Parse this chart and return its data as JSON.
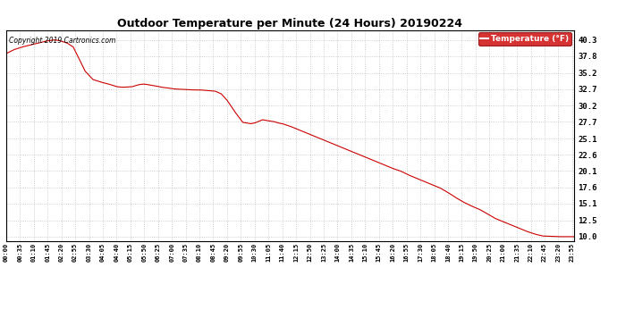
{
  "title": "Outdoor Temperature per Minute (24 Hours) 20190224",
  "copyright_text": "Copyright 2019 Cartronics.com",
  "legend_label": "Temperature (°F)",
  "line_color": "#cc0000",
  "background_color": "#ffffff",
  "grid_color": "#aaaaaa",
  "yticks": [
    10.0,
    12.5,
    15.1,
    17.6,
    20.1,
    22.6,
    25.1,
    27.7,
    30.2,
    32.7,
    35.2,
    37.8,
    40.3
  ],
  "ymin": 9.3,
  "ymax": 41.8,
  "xtick_interval_minutes": 35,
  "total_minutes": 1440,
  "key_times_minutes": [
    0,
    10,
    20,
    40,
    60,
    80,
    100,
    120,
    130,
    140,
    155,
    170,
    180,
    200,
    220,
    240,
    260,
    270,
    280,
    295,
    310,
    320,
    330,
    340,
    350,
    360,
    370,
    380,
    395,
    410,
    425,
    440,
    455,
    470,
    490,
    510,
    530,
    545,
    560,
    580,
    600,
    620,
    630,
    640,
    650,
    660,
    670,
    680,
    690,
    700,
    720,
    740,
    760,
    780,
    800,
    820,
    840,
    860,
    880,
    900,
    920,
    940,
    960,
    980,
    1000,
    1020,
    1040,
    1060,
    1080,
    1100,
    1120,
    1140,
    1160,
    1180,
    1200,
    1220,
    1240,
    1260,
    1280,
    1300,
    1320,
    1340,
    1360,
    1380,
    1400,
    1420,
    1439
  ],
  "key_temps": [
    38.2,
    38.5,
    38.8,
    39.2,
    39.5,
    39.8,
    40.1,
    40.3,
    40.25,
    40.1,
    39.8,
    39.2,
    38.0,
    35.5,
    34.2,
    33.8,
    33.5,
    33.3,
    33.1,
    33.0,
    33.05,
    33.1,
    33.3,
    33.45,
    33.5,
    33.4,
    33.3,
    33.2,
    33.0,
    32.9,
    32.75,
    32.7,
    32.65,
    32.6,
    32.6,
    32.5,
    32.4,
    32.0,
    31.0,
    29.2,
    27.6,
    27.4,
    27.5,
    27.75,
    28.0,
    27.9,
    27.8,
    27.7,
    27.5,
    27.4,
    27.0,
    26.5,
    26.0,
    25.5,
    25.0,
    24.5,
    24.0,
    23.5,
    23.0,
    22.5,
    22.0,
    21.5,
    21.0,
    20.5,
    20.1,
    19.5,
    19.0,
    18.5,
    18.0,
    17.5,
    16.8,
    16.0,
    15.3,
    14.7,
    14.2,
    13.5,
    12.8,
    12.3,
    11.8,
    11.3,
    10.8,
    10.4,
    10.1,
    10.05,
    10.0,
    10.0,
    10.0
  ]
}
